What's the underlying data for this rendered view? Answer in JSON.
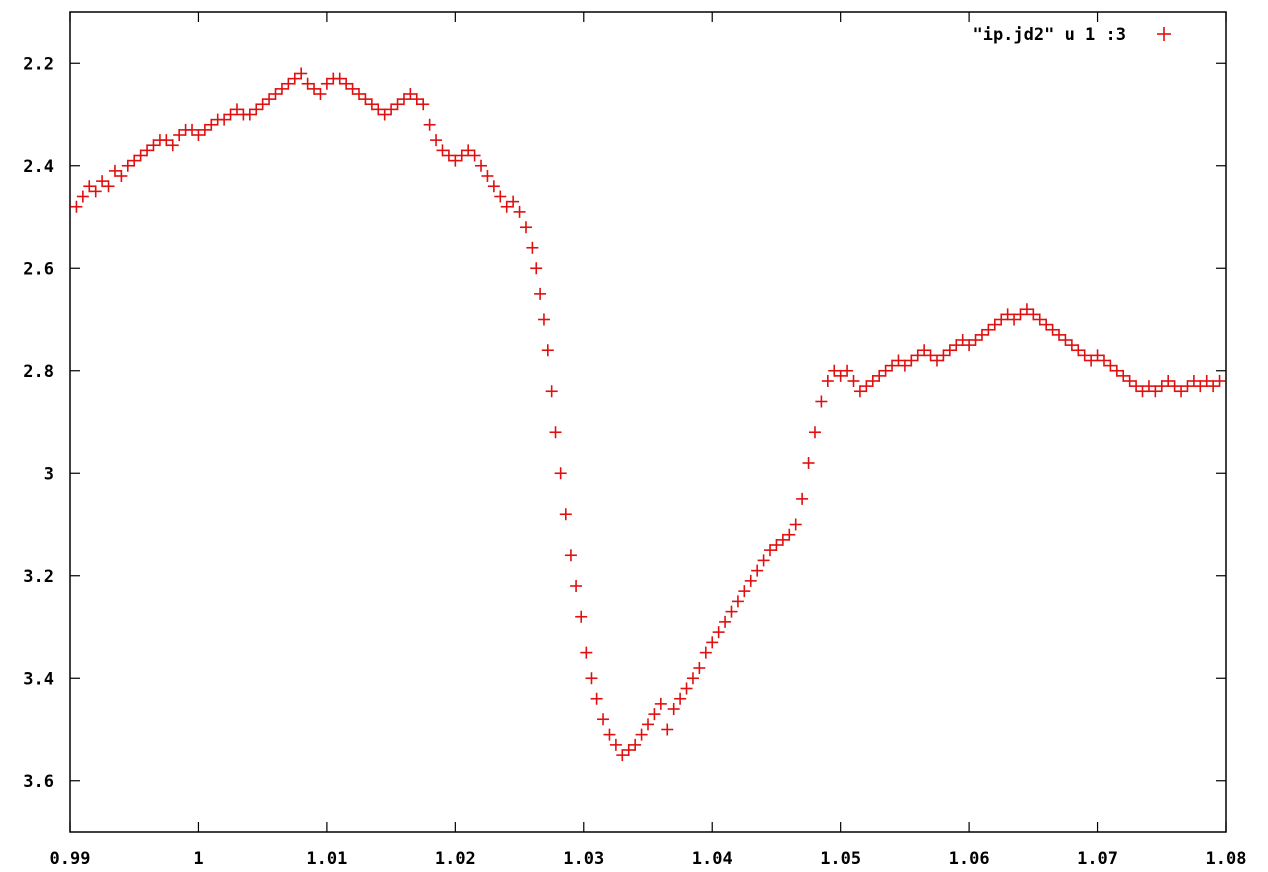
{
  "colors": {
    "series": "#e01010",
    "frame": "#000000",
    "background": "#ffffff"
  },
  "chart_data": {
    "type": "scatter",
    "title": "",
    "xlabel": "",
    "ylabel": "",
    "xlim": [
      0.99,
      1.08
    ],
    "ylim": [
      3.7,
      2.1
    ],
    "y_reversed": true,
    "grid": false,
    "legend_position": "top-right",
    "x_ticks": [
      0.99,
      1.0,
      1.01,
      1.02,
      1.03,
      1.04,
      1.05,
      1.06,
      1.07,
      1.08
    ],
    "x_tick_labels": [
      "0.99",
      "1",
      "1.01",
      "1.02",
      "1.03",
      "1.04",
      "1.05",
      "1.06",
      "1.07",
      "1.08"
    ],
    "y_ticks": [
      2.2,
      2.4,
      2.6,
      2.8,
      3.0,
      3.2,
      3.4,
      3.6
    ],
    "y_tick_labels": [
      "2.2",
      "2.4",
      "2.6",
      "2.8",
      "3",
      "3.2",
      "3.4",
      "3.6"
    ],
    "series": [
      {
        "name": "\"ip.jd2\" u 1 :3",
        "marker": "plus",
        "color": "#e01010",
        "points": [
          [
            0.9905,
            2.48
          ],
          [
            0.991,
            2.46
          ],
          [
            0.9915,
            2.44
          ],
          [
            0.992,
            2.45
          ],
          [
            0.9925,
            2.43
          ],
          [
            0.993,
            2.44
          ],
          [
            0.9935,
            2.41
          ],
          [
            0.994,
            2.42
          ],
          [
            0.9945,
            2.4
          ],
          [
            0.995,
            2.39
          ],
          [
            0.9955,
            2.38
          ],
          [
            0.996,
            2.37
          ],
          [
            0.9965,
            2.36
          ],
          [
            0.997,
            2.35
          ],
          [
            0.9975,
            2.35
          ],
          [
            0.998,
            2.36
          ],
          [
            0.9985,
            2.34
          ],
          [
            0.999,
            2.33
          ],
          [
            0.9995,
            2.33
          ],
          [
            1.0,
            2.34
          ],
          [
            1.0005,
            2.33
          ],
          [
            1.001,
            2.32
          ],
          [
            1.0015,
            2.31
          ],
          [
            1.002,
            2.31
          ],
          [
            1.0025,
            2.3
          ],
          [
            1.003,
            2.29
          ],
          [
            1.0035,
            2.3
          ],
          [
            1.004,
            2.3
          ],
          [
            1.0045,
            2.29
          ],
          [
            1.005,
            2.28
          ],
          [
            1.0055,
            2.27
          ],
          [
            1.006,
            2.26
          ],
          [
            1.0065,
            2.25
          ],
          [
            1.007,
            2.24
          ],
          [
            1.0075,
            2.23
          ],
          [
            1.008,
            2.22
          ],
          [
            1.0085,
            2.24
          ],
          [
            1.009,
            2.25
          ],
          [
            1.0095,
            2.26
          ],
          [
            1.01,
            2.24
          ],
          [
            1.0105,
            2.23
          ],
          [
            1.011,
            2.23
          ],
          [
            1.0115,
            2.24
          ],
          [
            1.012,
            2.25
          ],
          [
            1.0125,
            2.26
          ],
          [
            1.013,
            2.27
          ],
          [
            1.0135,
            2.28
          ],
          [
            1.014,
            2.29
          ],
          [
            1.0145,
            2.3
          ],
          [
            1.015,
            2.29
          ],
          [
            1.0155,
            2.28
          ],
          [
            1.016,
            2.27
          ],
          [
            1.0165,
            2.26
          ],
          [
            1.017,
            2.27
          ],
          [
            1.0175,
            2.28
          ],
          [
            1.018,
            2.32
          ],
          [
            1.0185,
            2.35
          ],
          [
            1.019,
            2.37
          ],
          [
            1.0195,
            2.38
          ],
          [
            1.02,
            2.39
          ],
          [
            1.0205,
            2.38
          ],
          [
            1.021,
            2.37
          ],
          [
            1.0215,
            2.38
          ],
          [
            1.022,
            2.4
          ],
          [
            1.0225,
            2.42
          ],
          [
            1.023,
            2.44
          ],
          [
            1.0235,
            2.46
          ],
          [
            1.024,
            2.48
          ],
          [
            1.0245,
            2.47
          ],
          [
            1.025,
            2.49
          ],
          [
            1.0255,
            2.52
          ],
          [
            1.026,
            2.56
          ],
          [
            1.0263,
            2.6
          ],
          [
            1.0266,
            2.65
          ],
          [
            1.0269,
            2.7
          ],
          [
            1.0272,
            2.76
          ],
          [
            1.0275,
            2.84
          ],
          [
            1.0278,
            2.92
          ],
          [
            1.0282,
            3.0
          ],
          [
            1.0286,
            3.08
          ],
          [
            1.029,
            3.16
          ],
          [
            1.0294,
            3.22
          ],
          [
            1.0298,
            3.28
          ],
          [
            1.0302,
            3.35
          ],
          [
            1.0306,
            3.4
          ],
          [
            1.031,
            3.44
          ],
          [
            1.0315,
            3.48
          ],
          [
            1.032,
            3.51
          ],
          [
            1.0325,
            3.53
          ],
          [
            1.033,
            3.55
          ],
          [
            1.0335,
            3.54
          ],
          [
            1.034,
            3.53
          ],
          [
            1.0345,
            3.51
          ],
          [
            1.035,
            3.49
          ],
          [
            1.0355,
            3.47
          ],
          [
            1.036,
            3.45
          ],
          [
            1.0365,
            3.5
          ],
          [
            1.037,
            3.46
          ],
          [
            1.0375,
            3.44
          ],
          [
            1.038,
            3.42
          ],
          [
            1.0385,
            3.4
          ],
          [
            1.039,
            3.38
          ],
          [
            1.0395,
            3.35
          ],
          [
            1.04,
            3.33
          ],
          [
            1.0405,
            3.31
          ],
          [
            1.041,
            3.29
          ],
          [
            1.0415,
            3.27
          ],
          [
            1.042,
            3.25
          ],
          [
            1.0425,
            3.23
          ],
          [
            1.043,
            3.21
          ],
          [
            1.0435,
            3.19
          ],
          [
            1.044,
            3.17
          ],
          [
            1.0445,
            3.15
          ],
          [
            1.045,
            3.14
          ],
          [
            1.0455,
            3.13
          ],
          [
            1.046,
            3.12
          ],
          [
            1.0465,
            3.1
          ],
          [
            1.047,
            3.05
          ],
          [
            1.0475,
            2.98
          ],
          [
            1.048,
            2.92
          ],
          [
            1.0485,
            2.86
          ],
          [
            1.049,
            2.82
          ],
          [
            1.0495,
            2.8
          ],
          [
            1.05,
            2.81
          ],
          [
            1.0505,
            2.8
          ],
          [
            1.051,
            2.82
          ],
          [
            1.0515,
            2.84
          ],
          [
            1.052,
            2.83
          ],
          [
            1.0525,
            2.82
          ],
          [
            1.053,
            2.81
          ],
          [
            1.0535,
            2.8
          ],
          [
            1.054,
            2.79
          ],
          [
            1.0545,
            2.78
          ],
          [
            1.055,
            2.79
          ],
          [
            1.0555,
            2.78
          ],
          [
            1.056,
            2.77
          ],
          [
            1.0565,
            2.76
          ],
          [
            1.057,
            2.77
          ],
          [
            1.0575,
            2.78
          ],
          [
            1.058,
            2.77
          ],
          [
            1.0585,
            2.76
          ],
          [
            1.059,
            2.75
          ],
          [
            1.0595,
            2.74
          ],
          [
            1.06,
            2.75
          ],
          [
            1.0605,
            2.74
          ],
          [
            1.061,
            2.73
          ],
          [
            1.0615,
            2.72
          ],
          [
            1.062,
            2.71
          ],
          [
            1.0625,
            2.7
          ],
          [
            1.063,
            2.69
          ],
          [
            1.0635,
            2.7
          ],
          [
            1.064,
            2.69
          ],
          [
            1.0645,
            2.68
          ],
          [
            1.065,
            2.69
          ],
          [
            1.0655,
            2.7
          ],
          [
            1.066,
            2.71
          ],
          [
            1.0665,
            2.72
          ],
          [
            1.067,
            2.73
          ],
          [
            1.0675,
            2.74
          ],
          [
            1.068,
            2.75
          ],
          [
            1.0685,
            2.76
          ],
          [
            1.069,
            2.77
          ],
          [
            1.0695,
            2.78
          ],
          [
            1.07,
            2.77
          ],
          [
            1.0705,
            2.78
          ],
          [
            1.071,
            2.79
          ],
          [
            1.0715,
            2.8
          ],
          [
            1.072,
            2.81
          ],
          [
            1.0725,
            2.82
          ],
          [
            1.073,
            2.83
          ],
          [
            1.0735,
            2.84
          ],
          [
            1.074,
            2.83
          ],
          [
            1.0745,
            2.84
          ],
          [
            1.075,
            2.83
          ],
          [
            1.0755,
            2.82
          ],
          [
            1.076,
            2.83
          ],
          [
            1.0765,
            2.84
          ],
          [
            1.077,
            2.83
          ],
          [
            1.0775,
            2.82
          ],
          [
            1.078,
            2.83
          ],
          [
            1.0785,
            2.82
          ],
          [
            1.079,
            2.83
          ],
          [
            1.0795,
            2.82
          ]
        ]
      }
    ]
  }
}
